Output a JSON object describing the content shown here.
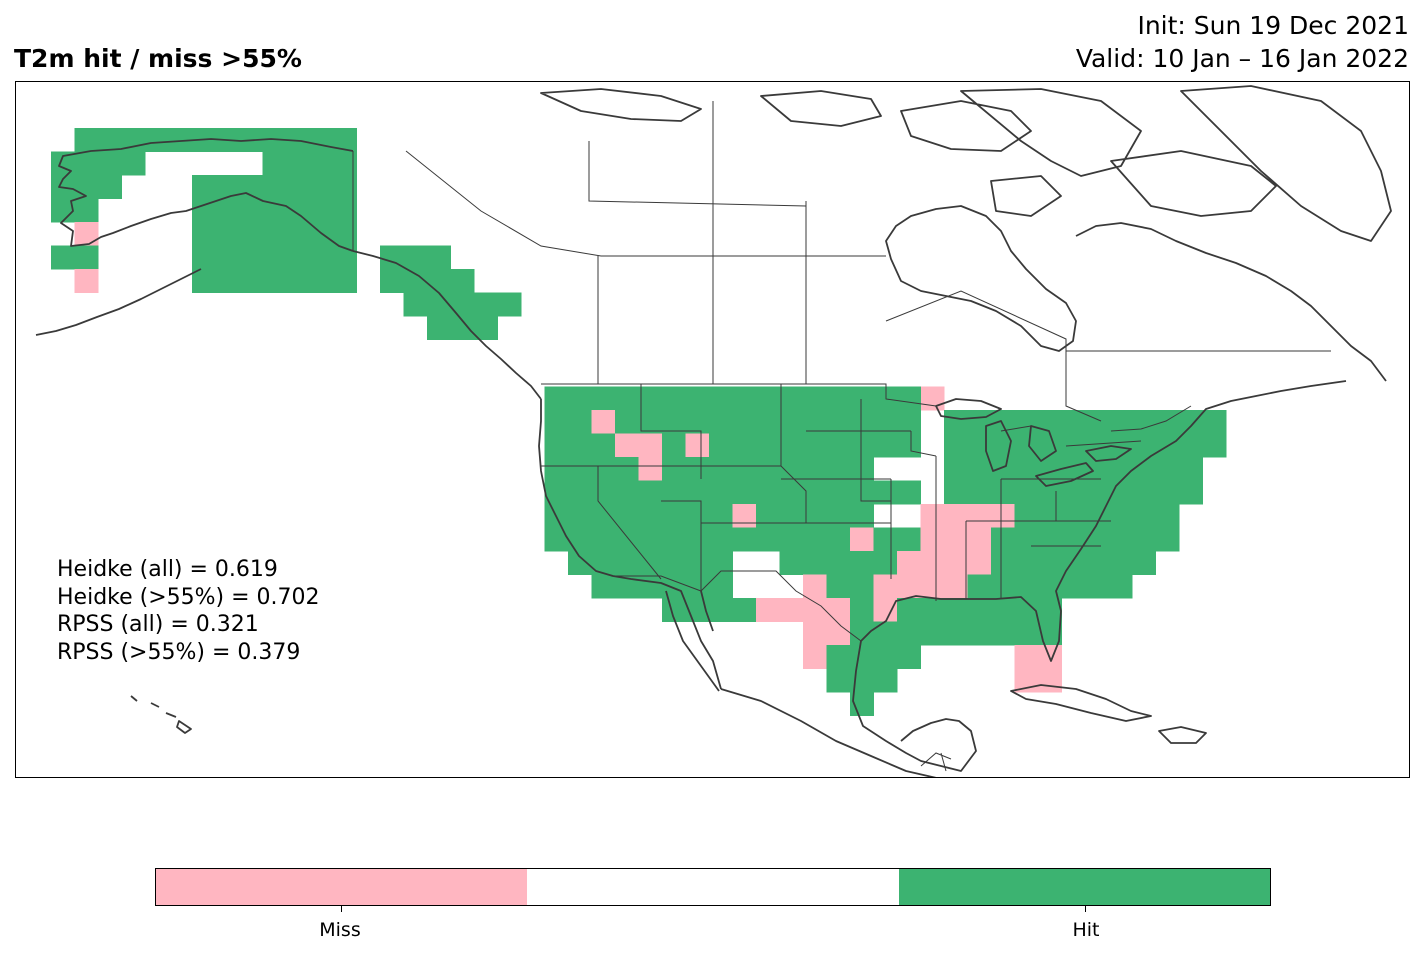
{
  "header": {
    "title": "T2m hit / miss  >55%",
    "init": "Init: Sun 19 Dec 2021",
    "valid": "Valid: 10 Jan – 16 Jan 2022"
  },
  "scores": [
    "Heidke (all) = 0.619",
    "Heidke (>55%) = 0.702",
    "RPSS (all) = 0.321",
    "RPSS (>55%) = 0.379"
  ],
  "legend": {
    "categories": [
      {
        "label": "Miss",
        "color": "#ffb6c1"
      },
      {
        "label": "",
        "color": "#ffffff"
      },
      {
        "label": "Hit",
        "color": "#3cb371"
      }
    ]
  },
  "colors": {
    "hit": "#3cb371",
    "miss": "#ffb6c1",
    "coast": "#3a3a3a",
    "border": "#3a3a3a"
  }
}
